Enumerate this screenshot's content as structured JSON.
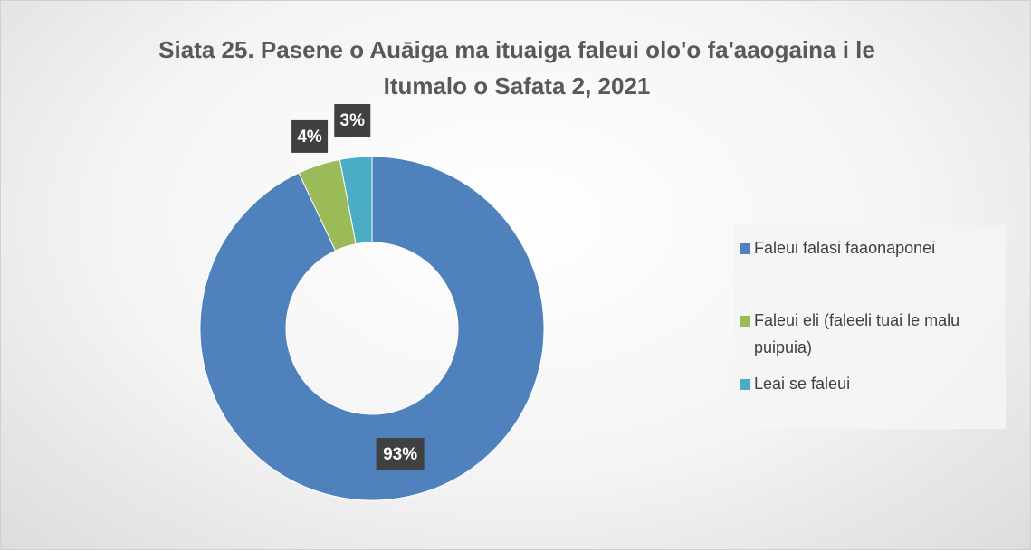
{
  "chart_data": {
    "type": "pie",
    "title": "Siata 25. Pasene o Auāiga ma ituaiga faleui olo'o fa'aaogaina i le Itumalo o Safata 2, 2021",
    "categories": [
      "Faleui falasi faaonaponei",
      "Faleui eli (faleeli tuai le malu puipuia)",
      "Leai se faleui"
    ],
    "values": [
      93,
      4,
      3
    ],
    "value_labels": [
      "93%",
      "4%",
      "3%"
    ],
    "colors": [
      "#4f81bd",
      "#9bbb59",
      "#4bacc6"
    ],
    "legend": "right"
  }
}
